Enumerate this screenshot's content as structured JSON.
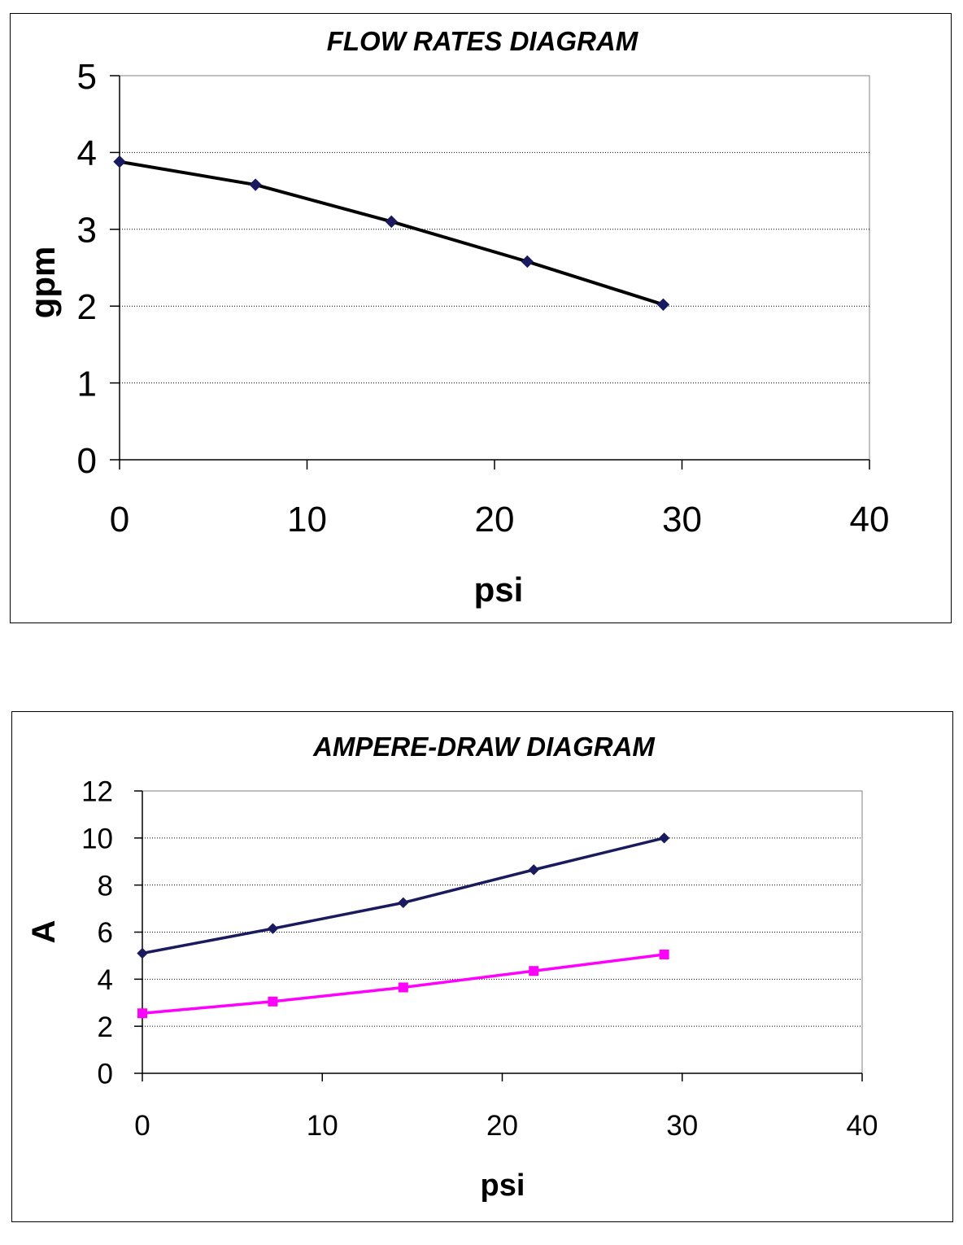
{
  "chart_data": [
    {
      "type": "line",
      "title": "FLOW RATES DIAGRAM",
      "xlabel": "psi",
      "ylabel": "gpm",
      "xlim": [
        0,
        40
      ],
      "ylim": [
        0,
        5
      ],
      "x_ticks": [
        "0",
        "10",
        "20",
        "30",
        "40"
      ],
      "y_ticks": [
        "0",
        "1",
        "2",
        "3",
        "4",
        "5"
      ],
      "grid": "horizontal dotted",
      "legend": "none",
      "series": [
        {
          "color": "#000000",
          "marker_color": "#1a1a5e",
          "marker": "diamond",
          "x": [
            0,
            7.25,
            14.5,
            21.75,
            29
          ],
          "y": [
            3.88,
            3.58,
            3.1,
            2.58,
            2.02
          ]
        }
      ]
    },
    {
      "type": "line",
      "title": "AMPERE-DRAW DIAGRAM",
      "xlabel": "psi",
      "ylabel": "A",
      "xlim": [
        0,
        40
      ],
      "ylim": [
        0,
        12
      ],
      "x_ticks": [
        "0",
        "10",
        "20",
        "30",
        "40"
      ],
      "y_ticks": [
        "0",
        "2",
        "4",
        "6",
        "8",
        "10",
        "12"
      ],
      "grid": "horizontal dotted",
      "legend": "none",
      "series": [
        {
          "color": "#1a1a5e",
          "marker_color": "#1a1a5e",
          "marker": "diamond",
          "x": [
            0,
            7.25,
            14.5,
            21.75,
            29
          ],
          "y": [
            5.1,
            6.15,
            7.25,
            8.65,
            10.0
          ]
        },
        {
          "color": "#ff00ff",
          "marker_color": "#ff00ff",
          "marker": "square",
          "x": [
            0,
            7.25,
            14.5,
            21.75,
            29
          ],
          "y": [
            2.55,
            3.05,
            3.65,
            4.35,
            5.05
          ]
        }
      ]
    }
  ]
}
